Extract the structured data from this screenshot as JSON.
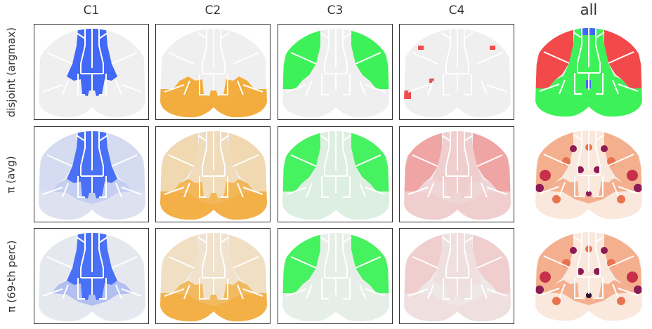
{
  "chart_data": {
    "type": "heatmap",
    "columns": [
      "C1",
      "C2",
      "C3",
      "C4",
      "all"
    ],
    "rows": [
      "disjoint (argmax)",
      "π (avg)",
      "π (69-th perc)"
    ],
    "cluster_colors": {
      "C1": "#4169f5",
      "C2": "#f2ad3e",
      "C3": "#3df258",
      "C4": "#f24a4a"
    },
    "colors": {
      "background_region": "#efefef",
      "outline": "#ffffff",
      "frame": "#333333"
    },
    "all_column_colormap": [
      "#fae8dc",
      "#f4b08e",
      "#e8734f",
      "#c8304a",
      "#8b1a55",
      "#2d1030"
    ],
    "panels": [
      [
        {
          "cluster": "C1",
          "fill": [
            "center"
          ]
        },
        {
          "cluster": "C2",
          "fill": [
            "postcenter",
            "lowerLeft",
            "lowerRight"
          ]
        },
        {
          "cluster": "C3",
          "fill": [
            "leftFront",
            "rightFront"
          ]
        },
        {
          "cluster": "C4",
          "fill": [
            "spots"
          ]
        },
        {
          "cluster": "all",
          "mode": "argmax"
        }
      ],
      [
        {
          "cluster": "C1",
          "intensity": {
            "center": 0.95,
            "postcenter": 0.25,
            "leftFront": 0.15,
            "rightFront": 0.15,
            "lowerLeft": 0.1,
            "lowerRight": 0.1
          }
        },
        {
          "cluster": "C2",
          "intensity": {
            "center": 0.3,
            "postcenter": 0.85,
            "leftFront": 0.35,
            "rightFront": 0.35,
            "lowerLeft": 0.95,
            "lowerRight": 0.95
          }
        },
        {
          "cluster": "C3",
          "intensity": {
            "center": 0.1,
            "postcenter": 0.1,
            "leftFront": 0.95,
            "rightFront": 0.95,
            "lowerLeft": 0.1,
            "lowerRight": 0.1
          }
        },
        {
          "cluster": "C4",
          "intensity": {
            "center": 0.2,
            "postcenter": 0.15,
            "leftFront": 0.45,
            "rightFront": 0.45,
            "lowerLeft": 0.2,
            "lowerRight": 0.2
          }
        },
        {
          "cluster": "all",
          "mode": "entropy"
        }
      ],
      [
        {
          "cluster": "C1",
          "intensity": {
            "center": 0.95,
            "postcenter": 0.35,
            "leftFront": 0.05,
            "rightFront": 0.05,
            "lowerLeft": 0.05,
            "lowerRight": 0.05
          }
        },
        {
          "cluster": "C2",
          "intensity": {
            "center": 0.2,
            "postcenter": 0.8,
            "leftFront": 0.25,
            "rightFront": 0.25,
            "lowerLeft": 0.95,
            "lowerRight": 0.95
          }
        },
        {
          "cluster": "C3",
          "intensity": {
            "center": 0.05,
            "postcenter": 0.05,
            "leftFront": 0.95,
            "rightFront": 0.95,
            "lowerLeft": 0.05,
            "lowerRight": 0.05
          }
        },
        {
          "cluster": "C4",
          "intensity": {
            "center": 0.1,
            "postcenter": 0.05,
            "leftFront": 0.2,
            "rightFront": 0.2,
            "lowerLeft": 0.1,
            "lowerRight": 0.1
          }
        },
        {
          "cluster": "all",
          "mode": "entropy-perc"
        }
      ]
    ]
  }
}
